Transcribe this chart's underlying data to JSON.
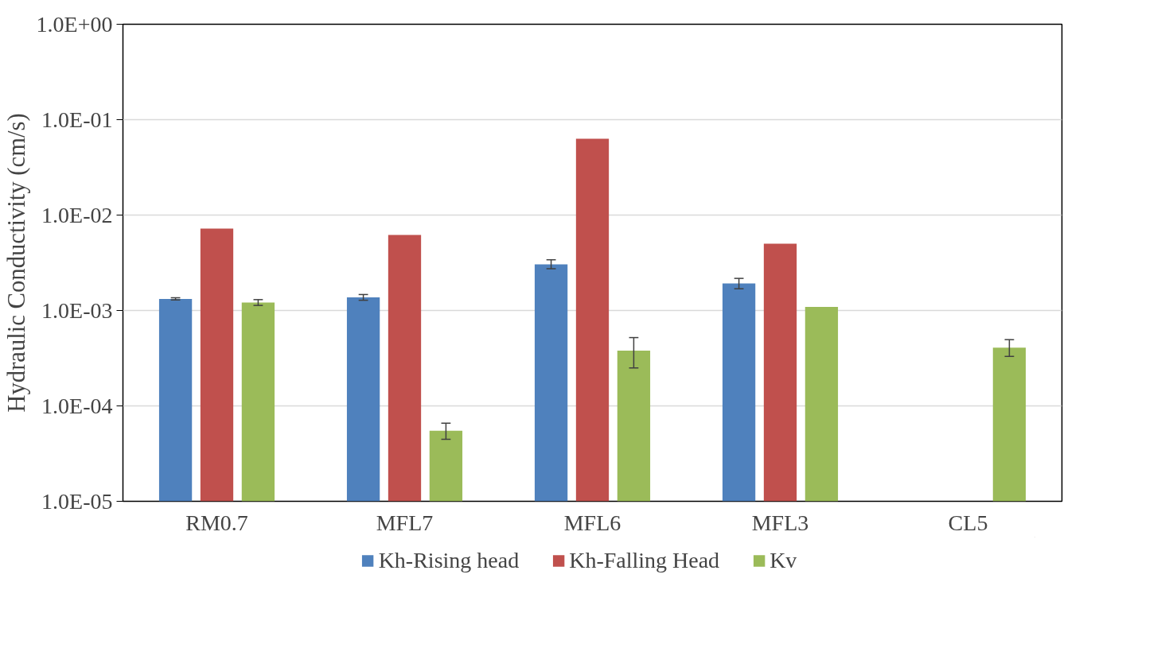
{
  "chart_data": {
    "type": "bar",
    "ylabel": "Hydraulic Conductivity (cm/s)",
    "log": true,
    "grid": "y",
    "legend": "bottom",
    "categories": [
      "RM0.7",
      "MFL7",
      "MFL6",
      "MFL3",
      "CL5"
    ],
    "ylim": [
      1e-05,
      1
    ],
    "yticks": [
      {
        "value": 1e-05,
        "label": "1.0E-05"
      },
      {
        "value": 0.0001,
        "label": "1.0E-04"
      },
      {
        "value": 0.001,
        "label": "1.0E-03"
      },
      {
        "value": 0.01,
        "label": "1.0E-02"
      },
      {
        "value": 0.1,
        "label": "1.0E-01"
      },
      {
        "value": 1,
        "label": "1.0E+00"
      }
    ],
    "series": [
      {
        "name": "Kh-Rising head",
        "color": "#4f81bd",
        "values": [
          0.00132,
          0.00137,
          0.00305,
          0.00192,
          null
        ],
        "errors": [
          [
            0.00129,
            0.00136
          ],
          [
            0.00128,
            0.00147
          ],
          [
            0.00274,
            0.0034
          ],
          [
            0.00169,
            0.00217
          ],
          null
        ]
      },
      {
        "name": "Kh-Falling Head",
        "color": "#c0504d",
        "values": [
          0.0072,
          0.0062,
          0.063,
          0.005,
          null
        ]
      },
      {
        "name": "Kv",
        "color": "#9bbb59",
        "values": [
          0.00121,
          5.5e-05,
          0.00038,
          0.00109,
          0.000407
        ],
        "errors": [
          [
            0.00113,
            0.0013
          ],
          [
            4.47e-05,
            6.6e-05
          ],
          [
            0.00025,
            0.00052
          ],
          null,
          [
            0.00033,
            0.000495
          ]
        ]
      }
    ]
  }
}
